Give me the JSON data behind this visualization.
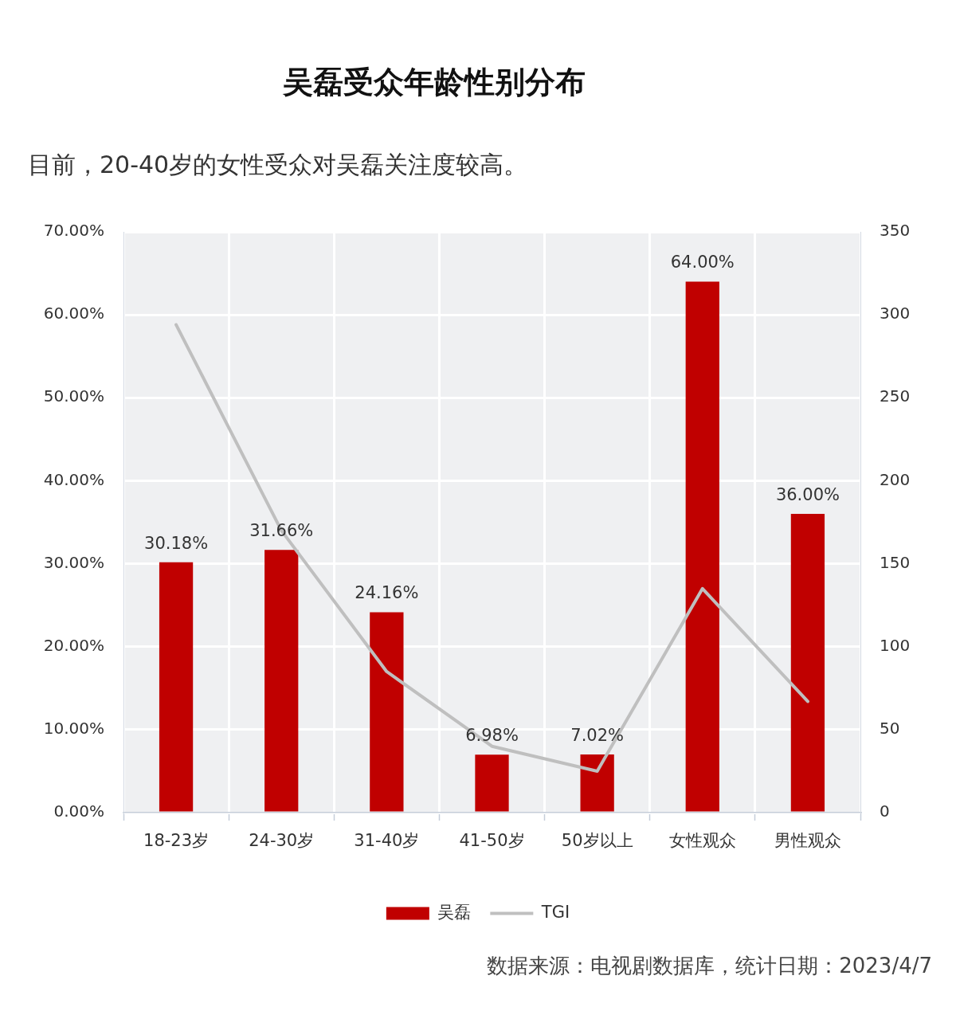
{
  "chart_data": {
    "type": "bar",
    "title": "吴磊受众年龄性别分布",
    "subtitle": "目前，20-40岁的女性受众对吴磊关注度较高。",
    "categories": [
      "18-23岁",
      "24-30岁",
      "31-40岁",
      "41-50岁",
      "50岁以上",
      "女性观众",
      "男性观众"
    ],
    "series": [
      {
        "name": "吴磊",
        "color": "#c00000",
        "values": [
          30.18,
          31.66,
          24.16,
          6.98,
          7.02,
          64.0,
          36.0
        ],
        "value_labels": [
          "30.18%",
          "31.66%",
          "24.16%",
          "6.98%",
          "7.02%",
          "64.00%",
          "36.00%"
        ]
      },
      {
        "name": "TGI",
        "type": "line",
        "axis": "y2",
        "color": "#bfbfbf",
        "values": [
          294,
          170,
          85,
          40,
          25,
          135,
          67
        ]
      }
    ],
    "ylim": [
      0,
      70
    ],
    "yticks": [
      {
        "value": 0,
        "label": "0.00%"
      },
      {
        "value": 10,
        "label": "10.00%"
      },
      {
        "value": 20,
        "label": "20.00%"
      },
      {
        "value": 30,
        "label": "30.00%"
      },
      {
        "value": 40,
        "label": "40.00%"
      },
      {
        "value": 50,
        "label": "50.00%"
      },
      {
        "value": 60,
        "label": "60.00%"
      },
      {
        "value": 70,
        "label": "70.00%"
      }
    ],
    "y2lim": [
      0,
      350
    ],
    "y2ticks": [
      0,
      50,
      100,
      150,
      200,
      250,
      300,
      350
    ],
    "grid": true,
    "legend": "bottom",
    "annotations": [
      "数据来源：电视剧数据库，统计日期：2023/4/7"
    ]
  }
}
